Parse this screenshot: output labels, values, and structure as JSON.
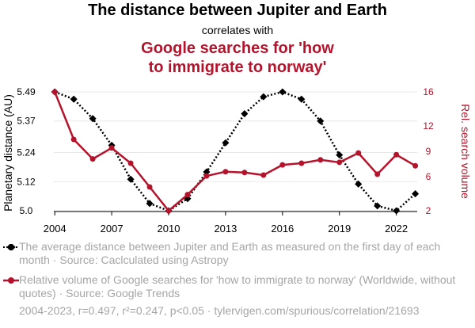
{
  "header": {
    "title": "The distance between Jupiter and Earth",
    "subtitle": "correlates with",
    "title2_line1": "Google searches for 'how",
    "title2_line2": "to immigrate to norway'"
  },
  "colors": {
    "series1": "#000000",
    "series2": "#b5132b",
    "grid": "#e8e8e8",
    "muted": "#a5a5a5"
  },
  "chart_data": {
    "type": "line",
    "x": [
      2004,
      2005,
      2006,
      2007,
      2008,
      2009,
      2010,
      2011,
      2012,
      2013,
      2014,
      2015,
      2016,
      2017,
      2018,
      2019,
      2020,
      2021,
      2022,
      2023
    ],
    "x_ticks": [
      "2004",
      "2007",
      "2010",
      "2013",
      "2016",
      "2019",
      "2022"
    ],
    "x_tick_values": [
      2004,
      2007,
      2010,
      2013,
      2016,
      2019,
      2022
    ],
    "xlim": [
      2003.95,
      2023.1
    ],
    "series": [
      {
        "name": "The distance between Jupiter and Earth",
        "axis": "left",
        "style": "dotted",
        "color": "#000000",
        "values": [
          5.49,
          5.46,
          5.38,
          5.27,
          5.13,
          5.03,
          5.0,
          5.05,
          5.16,
          5.28,
          5.4,
          5.47,
          5.49,
          5.46,
          5.37,
          5.23,
          5.11,
          5.02,
          5.0,
          5.07
        ]
      },
      {
        "name": "Google searches for 'how to immigrate to norway'",
        "axis": "right",
        "style": "solid",
        "color": "#b5132b",
        "values": [
          16,
          10.4,
          8.1,
          9.4,
          7.6,
          4.8,
          2.0,
          3.9,
          6.1,
          6.6,
          6.5,
          6.2,
          7.4,
          7.6,
          8.0,
          7.7,
          8.8,
          6.3,
          8.6,
          7.3
        ]
      }
    ],
    "y_left": {
      "label": "Planetary distance (AU)",
      "ticks": [
        "5.0",
        "5.12",
        "5.24",
        "5.37",
        "5.49"
      ],
      "tick_values": [
        5.0,
        5.12,
        5.24,
        5.37,
        5.49
      ],
      "lim": [
        5.0,
        5.49
      ]
    },
    "y_right": {
      "label": "Rel. search volume",
      "ticks": [
        "2",
        "6",
        "9",
        "12",
        "16"
      ],
      "tick_values": [
        2,
        6,
        9,
        12,
        16
      ],
      "lim": [
        2,
        16
      ]
    },
    "grid": true
  },
  "legend": {
    "item1": "The average distance between Jupiter and Earth as measured on the first day of each month · Source: Caclculated using Astropy",
    "item2": "Relative volume of Google searches for 'how to immigrate to norway' (Worldwide, without quotes) · Source: Google Trends"
  },
  "footer": "2004-2023, r=0.497, r²=0.247, p<0.05 · tylervigen.com/spurious/correlation/21693"
}
